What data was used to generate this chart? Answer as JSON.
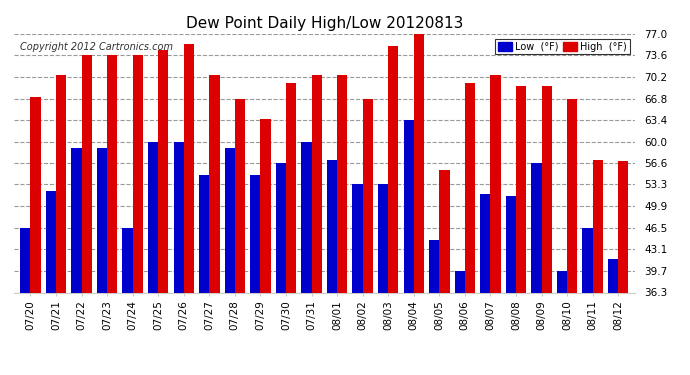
{
  "title": "Dew Point Daily High/Low 20120813",
  "copyright": "Copyright 2012 Cartronics.com",
  "legend_low": "Low  (°F)",
  "legend_high": "High  (°F)",
  "categories": [
    "07/20",
    "07/21",
    "07/22",
    "07/23",
    "07/24",
    "07/25",
    "07/26",
    "07/27",
    "07/28",
    "07/29",
    "07/30",
    "07/31",
    "08/01",
    "08/02",
    "08/03",
    "08/04",
    "08/05",
    "08/06",
    "08/07",
    "08/08",
    "08/09",
    "08/10",
    "08/11",
    "08/12"
  ],
  "high_values": [
    67.0,
    70.5,
    73.6,
    73.6,
    73.6,
    74.5,
    75.4,
    70.5,
    66.8,
    63.6,
    69.2,
    70.5,
    70.5,
    66.8,
    75.0,
    77.2,
    55.5,
    69.2,
    70.5,
    68.8,
    68.8,
    66.8,
    57.2,
    57.0
  ],
  "low_values": [
    46.5,
    52.2,
    59.0,
    59.0,
    46.5,
    60.0,
    60.0,
    54.8,
    59.0,
    54.8,
    56.6,
    60.0,
    57.2,
    53.3,
    53.3,
    63.4,
    44.6,
    39.7,
    51.8,
    51.5,
    56.6,
    39.7,
    46.5,
    41.5
  ],
  "bar_color_low": "#0000cc",
  "bar_color_high": "#dd0000",
  "bg_color": "#ffffff",
  "grid_color": "#999999",
  "ylim_min": 36.3,
  "ylim_max": 77.0,
  "yticks": [
    36.3,
    39.7,
    43.1,
    46.5,
    49.9,
    53.3,
    56.6,
    60.0,
    63.4,
    66.8,
    70.2,
    73.6,
    77.0
  ],
  "figwidth": 6.9,
  "figheight": 3.75,
  "dpi": 100
}
